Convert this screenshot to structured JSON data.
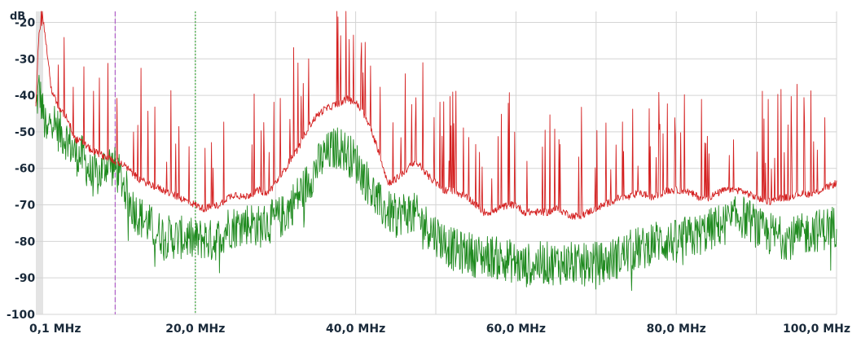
{
  "chart_data": {
    "type": "line",
    "title": "",
    "xlabel": "",
    "ylabel": "dB",
    "x_unit": "MHz",
    "xlim": [
      0.1,
      100
    ],
    "ylim": [
      -100,
      -17
    ],
    "grid": true,
    "y_ticks": [
      {
        "value": -20,
        "label": "-20"
      },
      {
        "value": -30,
        "label": "-30"
      },
      {
        "value": -40,
        "label": "-40"
      },
      {
        "value": -50,
        "label": "-50"
      },
      {
        "value": -60,
        "label": "-60"
      },
      {
        "value": -70,
        "label": "-70"
      },
      {
        "value": -80,
        "label": "-80"
      },
      {
        "value": -90,
        "label": "-90"
      },
      {
        "value": -100,
        "label": "-100"
      }
    ],
    "x_ticks": [
      {
        "value": 0.1,
        "label": "0,1 MHz"
      },
      {
        "value": 20,
        "label": "20,0 MHz"
      },
      {
        "value": 40,
        "label": "40,0 MHz"
      },
      {
        "value": 60,
        "label": "60,0 MHz"
      },
      {
        "value": 80,
        "label": "80,0 MHz"
      },
      {
        "value": 100,
        "label": "100,0 MHz"
      }
    ],
    "x_gridlines": [
      10,
      20,
      30,
      40,
      50,
      60,
      70,
      80,
      90,
      100
    ],
    "markers": [
      {
        "x": 10,
        "color": "#b060c8",
        "style": "dashed"
      },
      {
        "x": 20,
        "color": "#3aa83a",
        "style": "dotted"
      }
    ],
    "series": [
      {
        "color": "#d42020",
        "x": [
          0.1,
          0.5,
          1,
          1.5,
          2,
          3,
          4,
          5,
          6,
          7,
          8,
          9,
          10,
          11,
          12,
          13,
          14,
          15,
          16,
          17,
          18,
          19,
          20,
          21,
          22,
          23,
          24,
          25,
          26,
          27,
          28,
          29,
          30,
          31,
          32,
          33,
          34,
          35,
          36,
          37,
          38,
          39,
          40,
          41,
          42,
          43,
          44,
          45,
          46,
          47,
          48,
          49,
          50,
          51,
          52,
          53,
          54,
          55,
          56,
          57,
          58,
          59,
          60,
          61,
          62,
          63,
          64,
          65,
          66,
          67,
          68,
          69,
          70,
          71,
          72,
          73,
          74,
          75,
          76,
          77,
          78,
          79,
          80,
          81,
          82,
          83,
          84,
          85,
          86,
          87,
          88,
          89,
          90,
          91,
          92,
          93,
          94,
          95,
          96,
          97,
          98,
          99,
          100
        ],
        "y": [
          -42,
          -22,
          -19,
          -28,
          -38,
          -44,
          -46,
          -52,
          -53,
          -55,
          -56,
          -57,
          -58,
          -59,
          -61,
          -63,
          -64,
          -65,
          -66,
          -67,
          -68,
          -69,
          -70,
          -71,
          -70.5,
          -70,
          -68,
          -67,
          -68,
          -67,
          -66,
          -67,
          -64,
          -61,
          -57,
          -54,
          -49,
          -46,
          -44,
          -43,
          -42,
          -41,
          -42,
          -45,
          -50,
          -56,
          -64,
          -63,
          -61,
          -59,
          -59,
          -62,
          -64,
          -66,
          -66,
          -67,
          -68,
          -70,
          -72,
          -72,
          -71,
          -70,
          -70,
          -72,
          -72,
          -72,
          -72,
          -71,
          -72,
          -73,
          -73,
          -72,
          -71,
          -70,
          -69,
          -68,
          -68,
          -67,
          -67,
          -68,
          -67,
          -66,
          -66,
          -66,
          -67,
          -68,
          -68,
          -67,
          -66,
          -66,
          -66,
          -67,
          -68,
          -69,
          -69,
          -68,
          -68,
          -67,
          -67,
          -67,
          -66,
          -65,
          -64
        ]
      },
      {
        "color": "#1f8a1f",
        "x": [
          0.1,
          0.5,
          1,
          1.5,
          2,
          3,
          4,
          5,
          6,
          7,
          8,
          9,
          10,
          11,
          12,
          13,
          14,
          15,
          16,
          17,
          18,
          19,
          20,
          21,
          22,
          23,
          24,
          25,
          26,
          27,
          28,
          29,
          30,
          31,
          32,
          33,
          34,
          35,
          36,
          37,
          38,
          39,
          40,
          41,
          42,
          43,
          44,
          45,
          46,
          47,
          48,
          49,
          50,
          51,
          52,
          53,
          54,
          55,
          56,
          57,
          58,
          59,
          60,
          61,
          62,
          63,
          64,
          65,
          66,
          67,
          68,
          69,
          70,
          71,
          72,
          73,
          74,
          75,
          76,
          77,
          78,
          79,
          80,
          81,
          82,
          83,
          84,
          85,
          86,
          87,
          88,
          89,
          90,
          91,
          92,
          93,
          94,
          95,
          96,
          97,
          98,
          99,
          100
        ],
        "y": [
          -44,
          -38,
          -45,
          -52,
          -45,
          -50,
          -52,
          -56,
          -57,
          -62,
          -62,
          -58,
          -60,
          -64,
          -70,
          -73,
          -75,
          -77,
          -78,
          -79,
          -79,
          -79,
          -80,
          -79,
          -80,
          -79,
          -76,
          -76,
          -75,
          -75,
          -76,
          -75,
          -74,
          -73,
          -70,
          -67,
          -64,
          -60,
          -57,
          -55,
          -54,
          -56,
          -58,
          -62,
          -66,
          -70,
          -72,
          -73,
          -72,
          -72,
          -74,
          -76,
          -78,
          -80,
          -82,
          -83,
          -83,
          -84,
          -84,
          -84,
          -85,
          -85,
          -86,
          -87,
          -86,
          -86,
          -86,
          -86,
          -86,
          -86,
          -87,
          -86,
          -86,
          -86,
          -85,
          -84,
          -83,
          -82,
          -82,
          -80,
          -80,
          -80,
          -80,
          -79,
          -79,
          -78,
          -77,
          -76,
          -75,
          -74,
          -73,
          -74,
          -76,
          -78,
          -78,
          -79,
          -79,
          -79,
          -78,
          -77,
          -77,
          -76,
          -76
        ]
      }
    ]
  }
}
